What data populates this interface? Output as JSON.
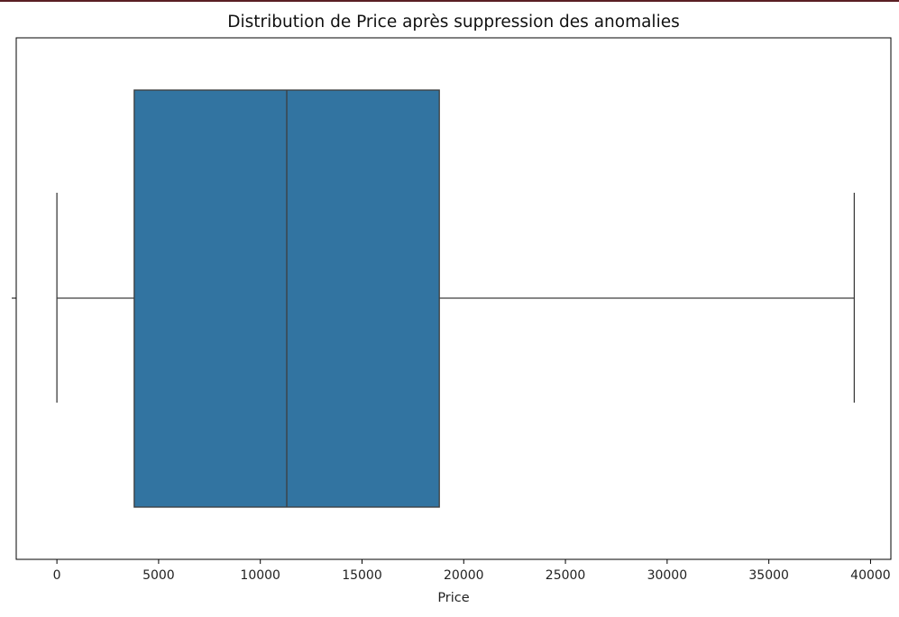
{
  "chart_data": {
    "type": "box",
    "title": "Distribution de Price après suppression des anomalies",
    "xlabel": "Price",
    "ylabel": "",
    "xlim": [
      -2000,
      41000
    ],
    "xticks": [
      0,
      5000,
      10000,
      15000,
      20000,
      25000,
      30000,
      35000,
      40000
    ],
    "xtick_labels": [
      "0",
      "5000",
      "10000",
      "15000",
      "20000",
      "25000",
      "30000",
      "35000",
      "40000"
    ],
    "orientation": "horizontal",
    "grid": false,
    "legend": "none",
    "box": {
      "whisker_low": 0,
      "q1": 3800,
      "median": 11300,
      "q3": 18800,
      "whisker_high": 39200
    },
    "colors": {
      "box_fill": "#3274a1",
      "line": "#3d3d3d",
      "frame": "#000000"
    }
  }
}
